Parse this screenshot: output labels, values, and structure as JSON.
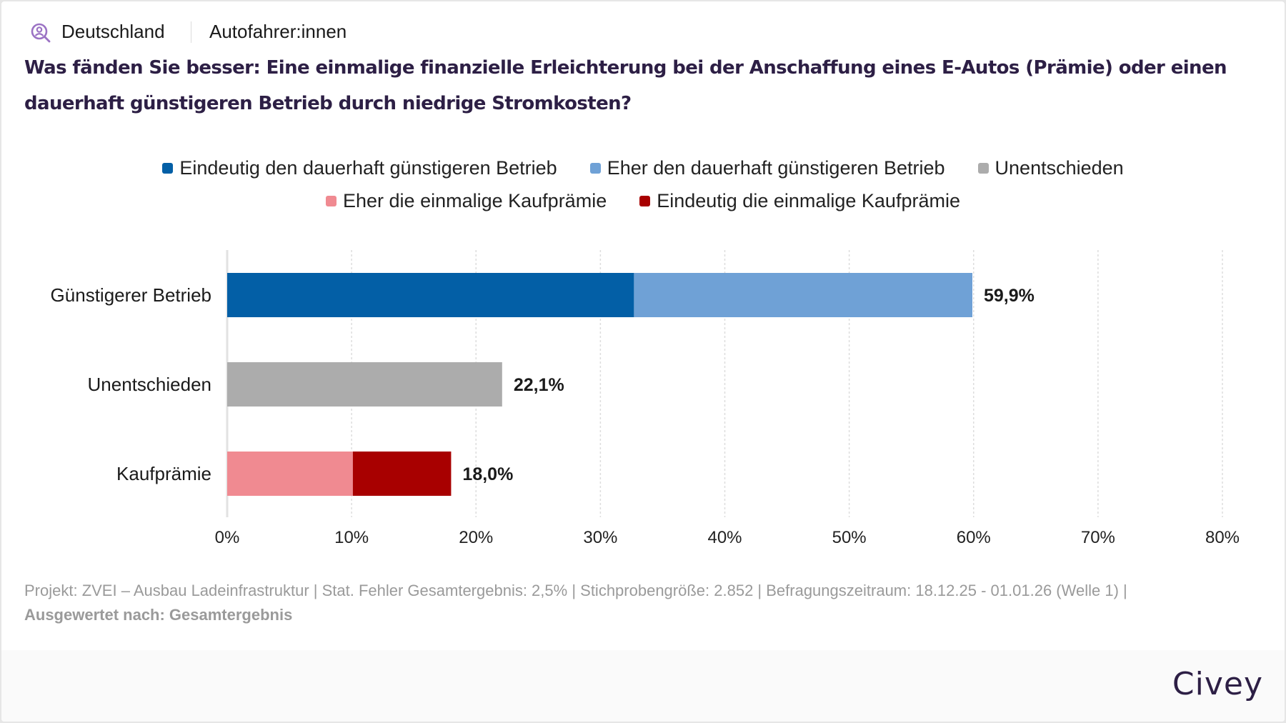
{
  "header": {
    "region": "Deutschland",
    "audience": "Autofahrer:innen",
    "icon": "search-person-icon",
    "icon_color": "#9b72c4"
  },
  "question": "Was fänden Sie besser: Eine einmalige finanzielle Erleichterung bei der Anschaffung eines E-Autos (Prämie) oder einen dauerhaft günstigeren Betrieb durch niedrige Stromkosten?",
  "legend": [
    {
      "label": "Eindeutig den dauerhaft günstigeren Betrieb",
      "color": "#035fa6"
    },
    {
      "label": "Eher den dauerhaft günstigeren Betrieb",
      "color": "#6fa1d6"
    },
    {
      "label": "Unentschieden",
      "color": "#acacac"
    },
    {
      "label": "Eher die einmalige Kaufprämie",
      "color": "#f08a91"
    },
    {
      "label": "Eindeutig die einmalige Kaufprämie",
      "color": "#a80000"
    }
  ],
  "chart_data": {
    "type": "bar",
    "orientation": "horizontal",
    "stacked": true,
    "title": "Was fänden Sie besser: Eine einmalige finanzielle Erleichterung bei der Anschaffung eines E-Autos (Prämie) oder einen dauerhaft günstigeren Betrieb durch niedrige Stromkosten?",
    "categories": [
      "Günstigerer Betrieb",
      "Unentschieden",
      "Kaufprämie"
    ],
    "series": [
      {
        "name": "Eindeutig den dauerhaft günstigeren Betrieb",
        "color": "#035fa6",
        "values": [
          32.7,
          0,
          0
        ]
      },
      {
        "name": "Eher den dauerhaft günstigeren Betrieb",
        "color": "#6fa1d6",
        "values": [
          27.2,
          0,
          0
        ]
      },
      {
        "name": "Unentschieden",
        "color": "#acacac",
        "values": [
          0,
          22.1,
          0
        ]
      },
      {
        "name": "Eher die einmalige Kaufprämie",
        "color": "#f08a91",
        "values": [
          0,
          0,
          10.1
        ]
      },
      {
        "name": "Eindeutig die einmalige Kaufprämie",
        "color": "#a80000",
        "values": [
          0,
          0,
          7.9
        ]
      }
    ],
    "totals": [
      59.9,
      22.1,
      18.0
    ],
    "total_labels": [
      "59,9%",
      "22,1%",
      "18,0%"
    ],
    "xlim": [
      0,
      80
    ],
    "xticks": [
      0,
      10,
      20,
      30,
      40,
      50,
      60,
      70,
      80
    ],
    "xtick_labels": [
      "0%",
      "10%",
      "20%",
      "30%",
      "40%",
      "50%",
      "60%",
      "70%",
      "80%"
    ],
    "xlabel": "",
    "ylabel": "",
    "grid": "vertical dashed",
    "legend_position": "top-center"
  },
  "notes": {
    "line1": "Projekt: ZVEI – Ausbau Ladeinfrastruktur | Stat. Fehler Gesamtergebnis: 2,5% | Stichprobengröße: 2.852 | Befragungszeitraum: 18.12.25 - 01.01.26 (Welle 1) |",
    "line2": "Ausgewertet nach: Gesamtergebnis"
  },
  "footer": {
    "logo": "Civey"
  }
}
